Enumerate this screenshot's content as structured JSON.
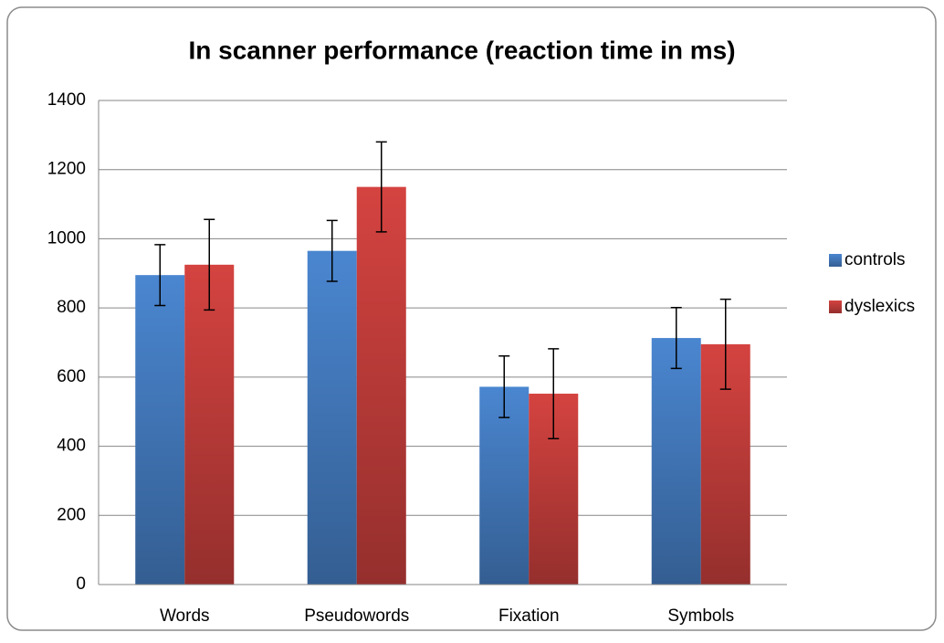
{
  "chart_data": {
    "type": "bar",
    "title": "In scanner performance (reaction time in ms)",
    "categories": [
      "Words",
      "Pseudowords",
      "Fixation",
      "Symbols"
    ],
    "series": [
      {
        "name": "controls",
        "color": "#4a86d0",
        "values": [
          895,
          965,
          572,
          713
        ],
        "errors": [
          88,
          88,
          89,
          88
        ]
      },
      {
        "name": "dyslexics",
        "color": "#d44340",
        "values": [
          925,
          1150,
          552,
          695
        ],
        "errors": [
          131,
          130,
          130,
          130
        ]
      }
    ],
    "ylim": [
      0,
      1400
    ],
    "yticks": [
      0,
      200,
      400,
      600,
      800,
      1000,
      1200,
      1400
    ],
    "grid": true,
    "legend": "right"
  }
}
